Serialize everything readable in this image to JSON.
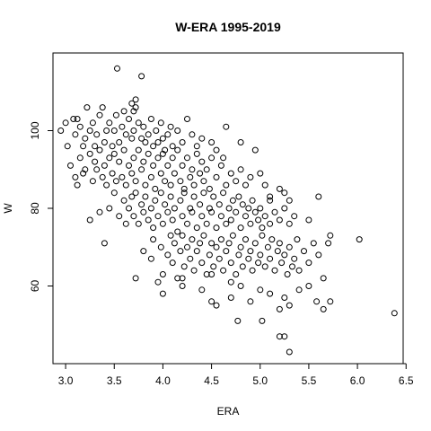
{
  "chart_data": {
    "type": "scatter",
    "title": "W-ERA 1995-2019",
    "xlabel": "ERA",
    "ylabel": "W",
    "xlim": [
      2.87,
      6.47
    ],
    "ylim": [
      40,
      120
    ],
    "xticks": [
      "3.0",
      "3.5",
      "4.0",
      "4.5",
      "5.0",
      "5.5",
      "6.0",
      "6.5"
    ],
    "yticks": [
      "60",
      "80",
      "100"
    ],
    "grid": false,
    "marker": "open-circle",
    "color": "#000000",
    "series": [
      {
        "points": [
          [
            2.95,
            100
          ],
          [
            3.0,
            102
          ],
          [
            3.02,
            96
          ],
          [
            3.08,
            103
          ],
          [
            3.12,
            103
          ],
          [
            3.1,
            99
          ],
          [
            3.15,
            101
          ],
          [
            3.18,
            96
          ],
          [
            3.2,
            98
          ],
          [
            3.22,
            106
          ],
          [
            3.25,
            100
          ],
          [
            3.28,
            102
          ],
          [
            3.3,
            96
          ],
          [
            3.32,
            99
          ],
          [
            3.35,
            104
          ],
          [
            3.38,
            106
          ],
          [
            3.4,
            97
          ],
          [
            3.42,
            100
          ],
          [
            3.45,
            102
          ],
          [
            3.48,
            96
          ],
          [
            3.5,
            100
          ],
          [
            3.52,
            104
          ],
          [
            3.55,
            97
          ],
          [
            3.58,
            101
          ],
          [
            3.6,
            105
          ],
          [
            3.62,
            99
          ],
          [
            3.65,
            103
          ],
          [
            3.68,
            98
          ],
          [
            3.7,
            100
          ],
          [
            3.72,
            106
          ],
          [
            3.75,
            102
          ],
          [
            3.78,
            98
          ],
          [
            3.8,
            101
          ],
          [
            3.82,
            97
          ],
          [
            3.85,
            99
          ],
          [
            3.88,
            103
          ],
          [
            3.9,
            96
          ],
          [
            3.93,
            100
          ],
          [
            3.95,
            97
          ],
          [
            3.98,
            102
          ],
          [
            4.0,
            98
          ],
          [
            4.02,
            95
          ],
          [
            4.05,
            99
          ],
          [
            4.08,
            101
          ],
          [
            4.1,
            96
          ],
          [
            4.15,
            100
          ],
          [
            4.2,
            97
          ],
          [
            4.25,
            103
          ],
          [
            4.3,
            99
          ],
          [
            4.35,
            96
          ],
          [
            4.4,
            98
          ],
          [
            4.5,
            97
          ],
          [
            4.65,
            101
          ],
          [
            4.8,
            97
          ],
          [
            4.95,
            95
          ],
          [
            3.53,
            116
          ],
          [
            3.78,
            114
          ],
          [
            3.72,
            108
          ],
          [
            3.68,
            107
          ],
          [
            3.7,
            105
          ],
          [
            3.05,
            91
          ],
          [
            3.1,
            88
          ],
          [
            3.12,
            86
          ],
          [
            3.15,
            93
          ],
          [
            3.18,
            89
          ],
          [
            3.2,
            90
          ],
          [
            3.25,
            94
          ],
          [
            3.28,
            87
          ],
          [
            3.3,
            92
          ],
          [
            3.32,
            90
          ],
          [
            3.35,
            95
          ],
          [
            3.38,
            88
          ],
          [
            3.4,
            91
          ],
          [
            3.42,
            86
          ],
          [
            3.45,
            93
          ],
          [
            3.48,
            89
          ],
          [
            3.5,
            94
          ],
          [
            3.52,
            87
          ],
          [
            3.55,
            92
          ],
          [
            3.58,
            88
          ],
          [
            3.6,
            95
          ],
          [
            3.62,
            86
          ],
          [
            3.65,
            91
          ],
          [
            3.68,
            89
          ],
          [
            3.7,
            93
          ],
          [
            3.72,
            87
          ],
          [
            3.75,
            95
          ],
          [
            3.78,
            90
          ],
          [
            3.8,
            92
          ],
          [
            3.82,
            86
          ],
          [
            3.85,
            94
          ],
          [
            3.88,
            88
          ],
          [
            3.9,
            91
          ],
          [
            3.92,
            85
          ],
          [
            3.95,
            93
          ],
          [
            3.98,
            89
          ],
          [
            4.0,
            94
          ],
          [
            4.02,
            87
          ],
          [
            4.05,
            91
          ],
          [
            4.08,
            86
          ],
          [
            4.1,
            93
          ],
          [
            4.12,
            89
          ],
          [
            4.15,
            95
          ],
          [
            4.18,
            87
          ],
          [
            4.2,
            91
          ],
          [
            4.22,
            85
          ],
          [
            4.25,
            93
          ],
          [
            4.28,
            88
          ],
          [
            4.3,
            90
          ],
          [
            4.32,
            86
          ],
          [
            4.35,
            94
          ],
          [
            4.38,
            89
          ],
          [
            4.4,
            92
          ],
          [
            4.42,
            87
          ],
          [
            4.45,
            90
          ],
          [
            4.48,
            85
          ],
          [
            4.5,
            93
          ],
          [
            4.55,
            88
          ],
          [
            4.6,
            91
          ],
          [
            4.65,
            86
          ],
          [
            4.7,
            89
          ],
          [
            4.75,
            87
          ],
          [
            4.8,
            90
          ],
          [
            4.85,
            86
          ],
          [
            4.9,
            88
          ],
          [
            5.0,
            89
          ],
          [
            5.05,
            86
          ],
          [
            5.1,
            83
          ],
          [
            5.2,
            85
          ],
          [
            5.3,
            82
          ],
          [
            5.6,
            83
          ],
          [
            4.55,
            95
          ],
          [
            4.62,
            93
          ],
          [
            3.25,
            77
          ],
          [
            3.35,
            79
          ],
          [
            3.4,
            71
          ],
          [
            3.45,
            80
          ],
          [
            3.5,
            84
          ],
          [
            3.55,
            78
          ],
          [
            3.6,
            82
          ],
          [
            3.62,
            76
          ],
          [
            3.65,
            80
          ],
          [
            3.68,
            83
          ],
          [
            3.7,
            78
          ],
          [
            3.72,
            84
          ],
          [
            3.75,
            76
          ],
          [
            3.78,
            81
          ],
          [
            3.8,
            79
          ],
          [
            3.82,
            83
          ],
          [
            3.85,
            77
          ],
          [
            3.88,
            80
          ],
          [
            3.9,
            75
          ],
          [
            3.92,
            82
          ],
          [
            3.95,
            78
          ],
          [
            3.98,
            84
          ],
          [
            4.0,
            76
          ],
          [
            4.02,
            81
          ],
          [
            4.05,
            79
          ],
          [
            4.08,
            83
          ],
          [
            4.1,
            77
          ],
          [
            4.12,
            80
          ],
          [
            4.15,
            74
          ],
          [
            4.18,
            82
          ],
          [
            4.2,
            78
          ],
          [
            4.22,
            84
          ],
          [
            4.25,
            76
          ],
          [
            4.28,
            80
          ],
          [
            4.3,
            79
          ],
          [
            4.32,
            83
          ],
          [
            4.35,
            75
          ],
          [
            4.38,
            81
          ],
          [
            4.4,
            78
          ],
          [
            4.42,
            84
          ],
          [
            4.45,
            76
          ],
          [
            4.48,
            80
          ],
          [
            4.5,
            79
          ],
          [
            4.52,
            83
          ],
          [
            4.55,
            75
          ],
          [
            4.58,
            81
          ],
          [
            4.6,
            78
          ],
          [
            4.62,
            84
          ],
          [
            4.65,
            76
          ],
          [
            4.68,
            80
          ],
          [
            4.7,
            77
          ],
          [
            4.72,
            82
          ],
          [
            4.75,
            79
          ],
          [
            4.78,
            83
          ],
          [
            4.8,
            75
          ],
          [
            4.82,
            81
          ],
          [
            4.85,
            78
          ],
          [
            4.88,
            80
          ],
          [
            4.9,
            76
          ],
          [
            4.92,
            82
          ],
          [
            4.95,
            79
          ],
          [
            4.98,
            77
          ],
          [
            5.0,
            80
          ],
          [
            5.02,
            75
          ],
          [
            5.05,
            78
          ],
          [
            5.1,
            76
          ],
          [
            5.15,
            79
          ],
          [
            5.2,
            77
          ],
          [
            5.25,
            80
          ],
          [
            5.3,
            76
          ],
          [
            5.35,
            78
          ],
          [
            5.5,
            77
          ],
          [
            5.1,
            82
          ],
          [
            5.25,
            84
          ],
          [
            3.72,
            62
          ],
          [
            3.8,
            69
          ],
          [
            3.88,
            67
          ],
          [
            3.9,
            72
          ],
          [
            3.95,
            61
          ],
          [
            3.98,
            70
          ],
          [
            4.0,
            63
          ],
          [
            4.05,
            68
          ],
          [
            4.08,
            73
          ],
          [
            4.1,
            66
          ],
          [
            4.12,
            71
          ],
          [
            4.15,
            62
          ],
          [
            4.18,
            69
          ],
          [
            4.2,
            73
          ],
          [
            4.22,
            65
          ],
          [
            4.25,
            70
          ],
          [
            4.28,
            67
          ],
          [
            4.3,
            72
          ],
          [
            4.32,
            64
          ],
          [
            4.35,
            69
          ],
          [
            4.38,
            71
          ],
          [
            4.4,
            66
          ],
          [
            4.42,
            73
          ],
          [
            4.45,
            63
          ],
          [
            4.48,
            68
          ],
          [
            4.5,
            71
          ],
          [
            4.52,
            65
          ],
          [
            4.55,
            70
          ],
          [
            4.58,
            67
          ],
          [
            4.6,
            72
          ],
          [
            4.62,
            64
          ],
          [
            4.65,
            69
          ],
          [
            4.68,
            71
          ],
          [
            4.7,
            66
          ],
          [
            4.72,
            73
          ],
          [
            4.75,
            63
          ],
          [
            4.78,
            68
          ],
          [
            4.8,
            70
          ],
          [
            4.82,
            65
          ],
          [
            4.85,
            72
          ],
          [
            4.88,
            67
          ],
          [
            4.9,
            69
          ],
          [
            4.92,
            64
          ],
          [
            4.95,
            71
          ],
          [
            4.98,
            66
          ],
          [
            5.0,
            68
          ],
          [
            5.02,
            73
          ],
          [
            5.05,
            65
          ],
          [
            5.08,
            70
          ],
          [
            5.1,
            67
          ],
          [
            5.12,
            72
          ],
          [
            5.15,
            64
          ],
          [
            5.18,
            69
          ],
          [
            5.2,
            71
          ],
          [
            5.22,
            66
          ],
          [
            5.25,
            68
          ],
          [
            5.28,
            63
          ],
          [
            5.3,
            70
          ],
          [
            5.33,
            65
          ],
          [
            5.35,
            67
          ],
          [
            5.38,
            72
          ],
          [
            5.4,
            64
          ],
          [
            5.45,
            69
          ],
          [
            5.5,
            66
          ],
          [
            5.55,
            71
          ],
          [
            5.6,
            68
          ],
          [
            5.65,
            62
          ],
          [
            5.7,
            71
          ],
          [
            5.72,
            73
          ],
          [
            6.02,
            72
          ],
          [
            4.2,
            62
          ],
          [
            4.5,
            63
          ],
          [
            4.7,
            61
          ],
          [
            4.0,
            58
          ],
          [
            4.2,
            60
          ],
          [
            4.4,
            59
          ],
          [
            4.5,
            56
          ],
          [
            4.55,
            55
          ],
          [
            4.7,
            57
          ],
          [
            4.8,
            60
          ],
          [
            4.9,
            56
          ],
          [
            5.0,
            59
          ],
          [
            5.02,
            51
          ],
          [
            5.1,
            58
          ],
          [
            5.2,
            54
          ],
          [
            5.25,
            57
          ],
          [
            5.3,
            55
          ],
          [
            5.4,
            59
          ],
          [
            5.5,
            60
          ],
          [
            5.58,
            56
          ],
          [
            5.65,
            54
          ],
          [
            5.72,
            56
          ],
          [
            4.77,
            51
          ],
          [
            6.38,
            53
          ],
          [
            5.2,
            47
          ],
          [
            5.25,
            47
          ],
          [
            5.3,
            43
          ]
        ]
      }
    ]
  }
}
